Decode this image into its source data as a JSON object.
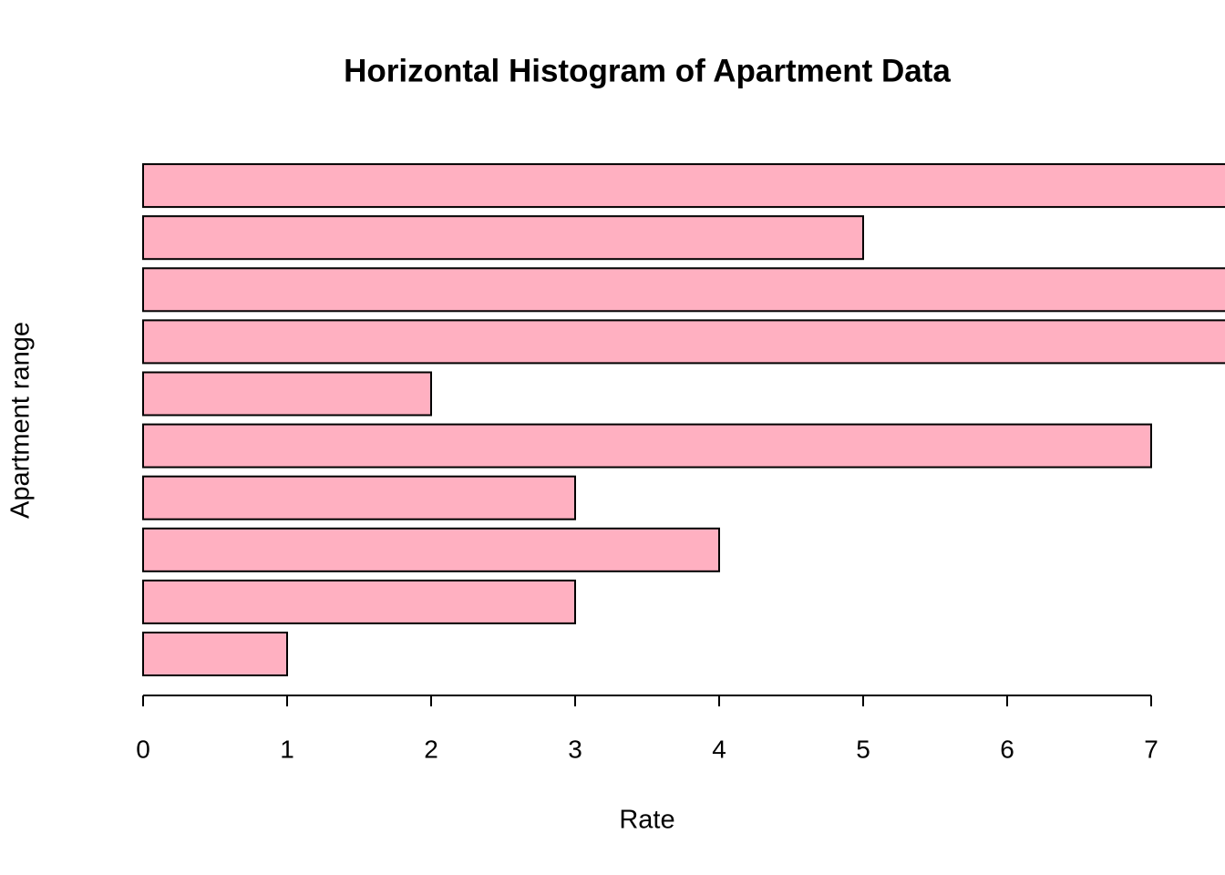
{
  "chart_data": {
    "type": "barh",
    "title": "Horizontal Histogram of Apartment Data",
    "x_label": "Rate",
    "y_label": "Apartment range",
    "values": [
      1,
      3,
      4,
      3,
      7,
      2,
      8,
      8,
      5,
      8
    ],
    "color": "#ffb0c1",
    "xlim": [
      0,
      8
    ],
    "xticks": [
      0,
      1,
      2,
      3,
      4,
      5,
      6,
      7
    ]
  }
}
